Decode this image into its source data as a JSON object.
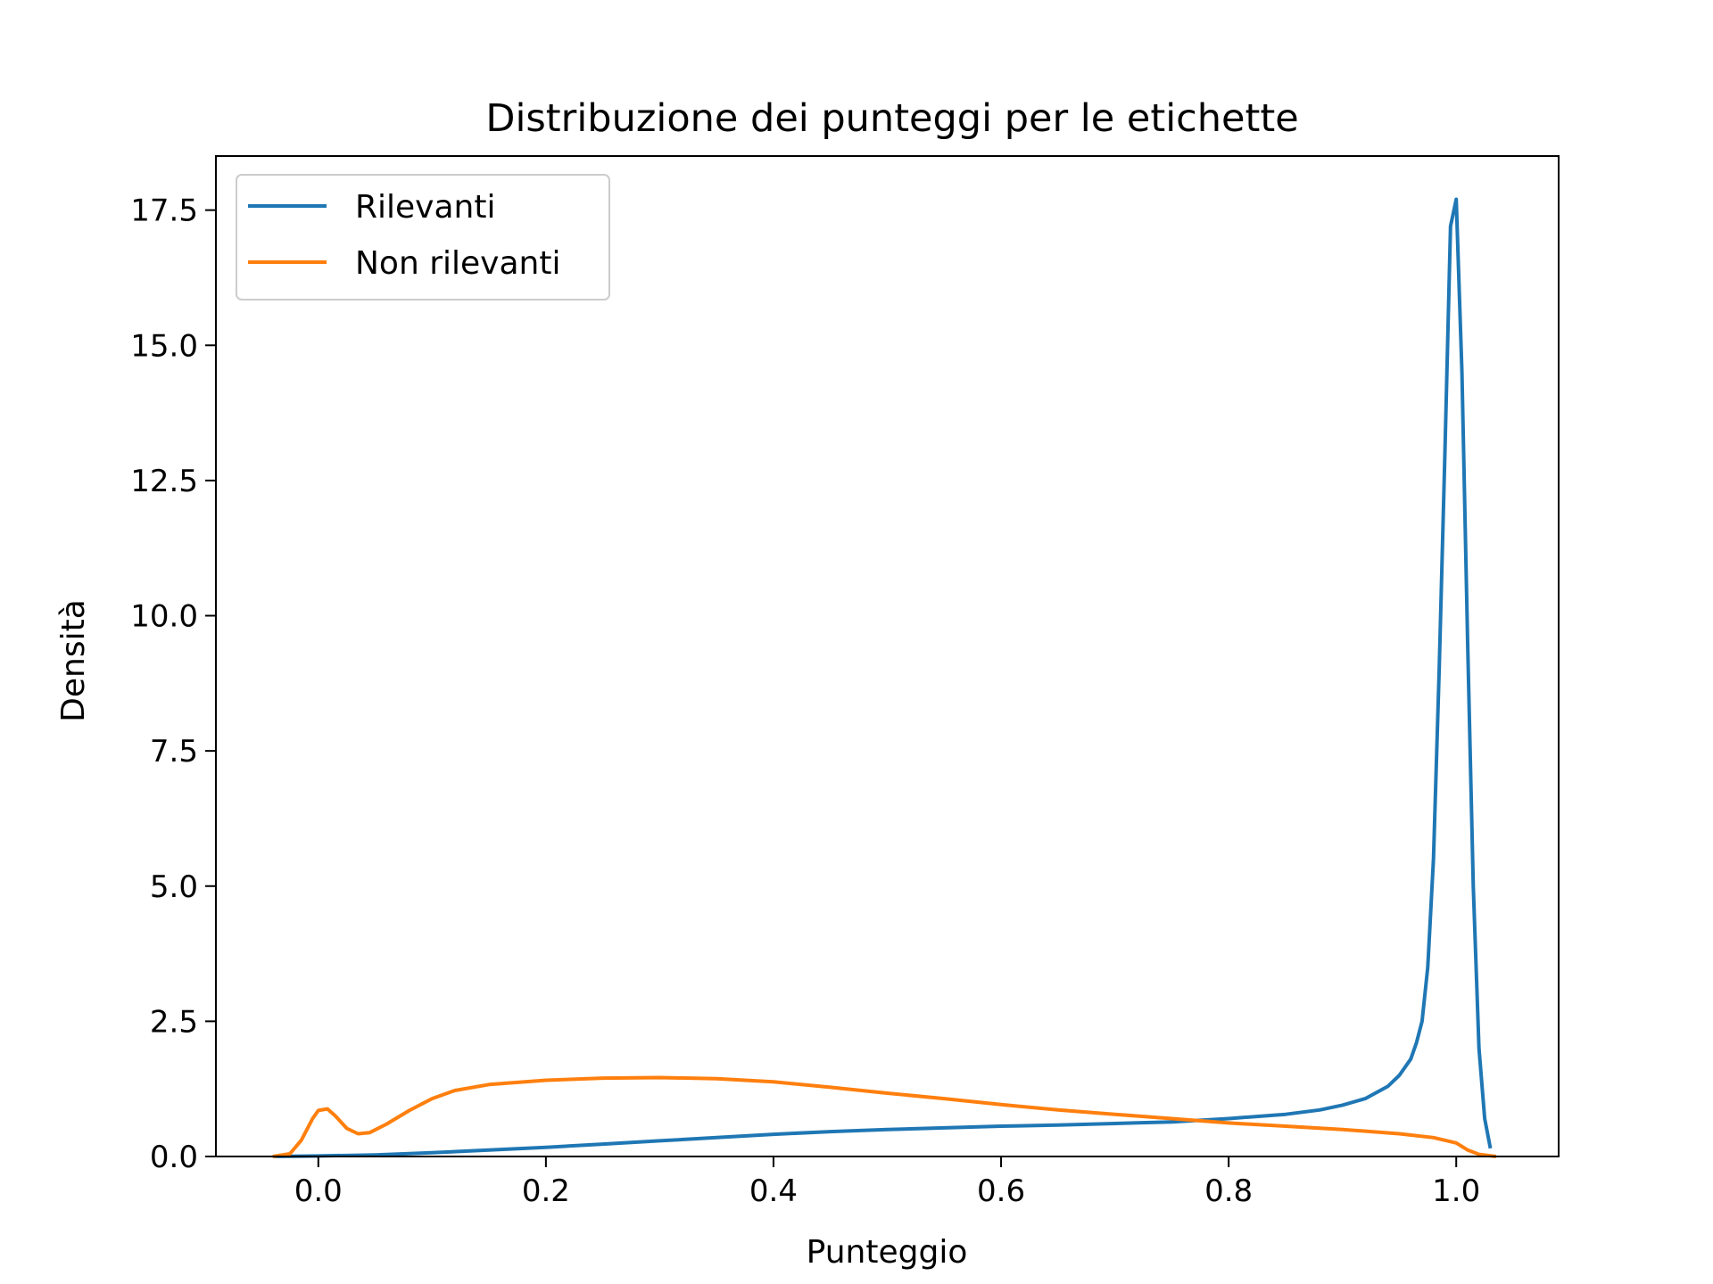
{
  "chart_data": {
    "type": "line",
    "title": "Distribuzione dei punteggi per le etichette",
    "xlabel": "Punteggio",
    "ylabel": "Densità",
    "xlim": [
      -0.09,
      1.09
    ],
    "ylim": [
      0,
      18.5
    ],
    "x_ticks": [
      0.0,
      0.2,
      0.4,
      0.6,
      0.8,
      1.0
    ],
    "x_tick_labels": [
      "0.0",
      "0.2",
      "0.4",
      "0.6",
      "0.8",
      "1.0"
    ],
    "y_ticks": [
      0.0,
      2.5,
      5.0,
      7.5,
      10.0,
      12.5,
      15.0,
      17.5
    ],
    "y_tick_labels": [
      "0.0",
      "2.5",
      "5.0",
      "7.5",
      "10.0",
      "12.5",
      "15.0",
      "17.5"
    ],
    "grid": false,
    "legend_position": "top-left",
    "series": [
      {
        "name": "Rilevanti",
        "color": "#1f77b4",
        "points": [
          [
            -0.04,
            0.0
          ],
          [
            0.0,
            0.01
          ],
          [
            0.05,
            0.03
          ],
          [
            0.1,
            0.07
          ],
          [
            0.15,
            0.12
          ],
          [
            0.2,
            0.17
          ],
          [
            0.25,
            0.23
          ],
          [
            0.3,
            0.29
          ],
          [
            0.35,
            0.35
          ],
          [
            0.4,
            0.41
          ],
          [
            0.45,
            0.46
          ],
          [
            0.5,
            0.5
          ],
          [
            0.55,
            0.53
          ],
          [
            0.6,
            0.56
          ],
          [
            0.65,
            0.58
          ],
          [
            0.7,
            0.61
          ],
          [
            0.75,
            0.64
          ],
          [
            0.8,
            0.7
          ],
          [
            0.85,
            0.78
          ],
          [
            0.88,
            0.86
          ],
          [
            0.9,
            0.95
          ],
          [
            0.92,
            1.07
          ],
          [
            0.94,
            1.3
          ],
          [
            0.95,
            1.5
          ],
          [
            0.96,
            1.8
          ],
          [
            0.965,
            2.1
          ],
          [
            0.97,
            2.5
          ],
          [
            0.975,
            3.5
          ],
          [
            0.98,
            5.5
          ],
          [
            0.985,
            9.0
          ],
          [
            0.99,
            13.0
          ],
          [
            0.995,
            17.2
          ],
          [
            1.0,
            17.7
          ],
          [
            1.005,
            14.5
          ],
          [
            1.01,
            9.5
          ],
          [
            1.015,
            5.0
          ],
          [
            1.02,
            2.0
          ],
          [
            1.025,
            0.7
          ],
          [
            1.03,
            0.15
          ]
        ]
      },
      {
        "name": "Non rilevanti",
        "color": "#ff7f0e",
        "points": [
          [
            -0.04,
            0.0
          ],
          [
            -0.025,
            0.05
          ],
          [
            -0.015,
            0.3
          ],
          [
            -0.005,
            0.7
          ],
          [
            0.0,
            0.85
          ],
          [
            0.008,
            0.88
          ],
          [
            0.015,
            0.75
          ],
          [
            0.025,
            0.52
          ],
          [
            0.035,
            0.42
          ],
          [
            0.045,
            0.44
          ],
          [
            0.06,
            0.6
          ],
          [
            0.08,
            0.85
          ],
          [
            0.1,
            1.07
          ],
          [
            0.12,
            1.22
          ],
          [
            0.15,
            1.33
          ],
          [
            0.2,
            1.41
          ],
          [
            0.25,
            1.45
          ],
          [
            0.3,
            1.46
          ],
          [
            0.35,
            1.44
          ],
          [
            0.4,
            1.38
          ],
          [
            0.45,
            1.28
          ],
          [
            0.5,
            1.17
          ],
          [
            0.55,
            1.07
          ],
          [
            0.6,
            0.96
          ],
          [
            0.65,
            0.86
          ],
          [
            0.7,
            0.78
          ],
          [
            0.75,
            0.7
          ],
          [
            0.8,
            0.62
          ],
          [
            0.85,
            0.56
          ],
          [
            0.9,
            0.5
          ],
          [
            0.95,
            0.42
          ],
          [
            0.98,
            0.35
          ],
          [
            1.0,
            0.25
          ],
          [
            1.01,
            0.12
          ],
          [
            1.02,
            0.04
          ],
          [
            1.035,
            0.0
          ]
        ]
      }
    ]
  }
}
